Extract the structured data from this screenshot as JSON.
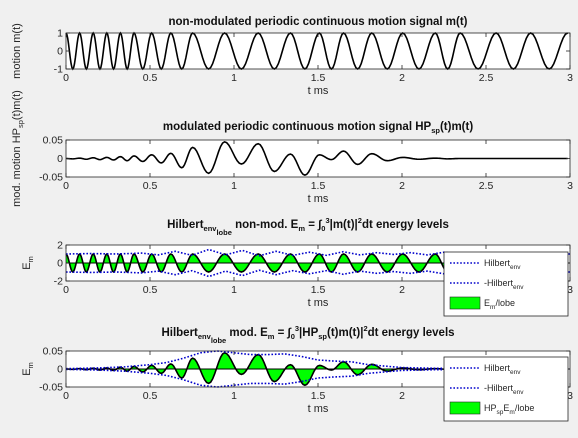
{
  "chart_data": [
    {
      "type": "line",
      "title": "non-modulated periodic continuous motion signal m(t)",
      "xlabel": "t ms",
      "ylabel": "motion m(t)",
      "xlim": [
        0,
        3
      ],
      "ylim": [
        -1,
        1
      ],
      "xticks": [
        "0",
        "0.5",
        "1",
        "1.5",
        "2",
        "2.5",
        "3"
      ],
      "yticks": [
        "-1",
        "0",
        "1"
      ],
      "grid": false,
      "series": [
        {
          "color": "#000000",
          "x": [
            0,
            0.0405,
            0.081,
            0.121,
            0.162,
            0.202,
            0.243,
            0.283,
            0.324,
            0.364,
            0.405,
            0.457,
            0.51,
            0.567,
            0.624,
            0.689,
            0.754,
            0.849,
            0.944,
            1.044,
            1.144,
            1.24,
            1.336,
            1.422,
            1.508,
            1.58,
            1.652,
            1.736,
            1.82,
            1.912,
            2.004,
            2.101,
            2.198,
            2.272,
            2.346,
            2.453,
            2.56,
            2.663,
            2.766,
            2.876,
            2.986
          ],
          "y": [
            1,
            -1,
            1,
            -1,
            1,
            -1,
            1,
            -1,
            1,
            -1,
            1,
            -1,
            1,
            -1,
            1,
            -1,
            1,
            -1,
            1,
            -1,
            1,
            -1,
            1,
            -1,
            1,
            -1,
            1,
            -1,
            1,
            -1,
            1,
            -1,
            1,
            -1,
            1,
            -1,
            1,
            -1,
            1,
            -1,
            1
          ]
        }
      ]
    },
    {
      "type": "line",
      "title": "modulated periodic continuous motion signal HP",
      "title_sub": "sp",
      "title_tail": "(t)m(t)",
      "xlabel": "t ms",
      "ylabel": "mod. motion HPsp(t)m(t)",
      "xlim": [
        0,
        3
      ],
      "ylim": [
        -0.05,
        0.05
      ],
      "xticks": [
        "0",
        "0.5",
        "1",
        "1.5",
        "2",
        "2.5",
        "3"
      ],
      "yticks": [
        "-0.05",
        "0",
        "0.05"
      ],
      "grid": false,
      "series": [
        {
          "color": "#000000",
          "x": [
            0,
            0.0405,
            0.081,
            0.121,
            0.162,
            0.202,
            0.243,
            0.283,
            0.324,
            0.364,
            0.405,
            0.457,
            0.51,
            0.567,
            0.624,
            0.689,
            0.754,
            0.849,
            0.944,
            1.044,
            1.144,
            1.24,
            1.336,
            1.422,
            1.508,
            1.58,
            1.652,
            1.736,
            1.82,
            1.912,
            2.004,
            2.101,
            2.198,
            2.272,
            2.346,
            2.453,
            2.56,
            2.663,
            2.766,
            2.876,
            2.986
          ],
          "y": [
            0,
            -0.001,
            0.001,
            -0.002,
            0.002,
            -0.003,
            0.003,
            -0.004,
            0.005,
            -0.006,
            0.007,
            -0.008,
            0.01,
            -0.012,
            0.014,
            -0.025,
            0.03,
            -0.04,
            0.045,
            -0.015,
            0.04,
            -0.035,
            0.012,
            -0.045,
            0.01,
            -0.003,
            0.02,
            -0.016,
            0.013,
            -0.006,
            0.003,
            -0.002,
            0.001,
            -0.001,
            0,
            0,
            0,
            0,
            0,
            0,
            0
          ]
        }
      ]
    },
    {
      "type": "area",
      "title": "Hilbert",
      "title_sub": "env",
      "title_sub2": "lobe",
      "title_tail": " non-mod. E",
      "title_sub3": "m",
      "title_tail2": " = ∫",
      "title_sub4": "0",
      "title_sup": "3",
      "title_tail3": "|m(t)|",
      "title_sup2": "2",
      "title_tail4": "dt energy levels",
      "xlabel": "t ms",
      "ylabel": "E",
      "ylabel_sub": "m",
      "xlim": [
        0,
        3
      ],
      "ylim": [
        -2,
        2
      ],
      "xticks": [
        "0",
        "0.5",
        "1",
        "1.5",
        "2",
        "2.5",
        "3"
      ],
      "yticks": [
        "-2",
        "0",
        "2"
      ],
      "grid": false,
      "legend": {
        "placement": "bottom-right",
        "entries": [
          {
            "label": "Hilbert",
            "sub": "env",
            "color": "#0000cc",
            "style": "dotted"
          },
          {
            "label": "-Hilbert",
            "sub": "env",
            "color": "#0000cc",
            "style": "dotted"
          },
          {
            "label": "E",
            "sub": "m",
            "tail": "/lobe",
            "color": "#00ff00",
            "style": "patch"
          }
        ]
      },
      "series": [
        {
          "name": "signal",
          "color": "#000000",
          "x": [
            0,
            0.0405,
            0.081,
            0.121,
            0.162,
            0.202,
            0.243,
            0.283,
            0.324,
            0.364,
            0.405,
            0.457,
            0.51,
            0.567,
            0.624,
            0.689,
            0.754,
            0.849,
            0.944,
            1.044,
            1.144,
            1.24,
            1.336,
            1.422,
            1.508,
            1.58,
            1.652,
            1.736,
            1.82,
            1.912,
            2.004,
            2.101,
            2.198,
            2.272,
            2.346,
            2.453,
            2.56,
            2.663,
            2.766,
            2.876,
            2.986
          ],
          "y": [
            1,
            -1,
            1,
            -1,
            1,
            -1,
            1,
            -1,
            1,
            -1,
            1,
            -1,
            1,
            -1,
            1,
            -1,
            1,
            -1,
            1,
            -1,
            1,
            -1,
            1,
            -1,
            1,
            -1,
            1,
            -1,
            1,
            -1,
            1,
            -1,
            1,
            -1,
            1,
            -1,
            1,
            -1,
            1,
            -1,
            1
          ]
        },
        {
          "name": "Hilbert env",
          "color": "#0000cc",
          "x": [
            0,
            0.15,
            0.3,
            0.45,
            0.55,
            0.65,
            0.75,
            0.85,
            0.95,
            1.05,
            1.15,
            1.25,
            1.35,
            1.45,
            1.55,
            1.65,
            1.75,
            1.85,
            1.95,
            2.05,
            2.15,
            2.25,
            2.35,
            2.5,
            2.65,
            2.8,
            2.95,
            3
          ],
          "y": [
            1.0,
            1.05,
            1.0,
            1.1,
            0.9,
            1.3,
            0.85,
            1.5,
            0.9,
            1.4,
            0.8,
            1.3,
            0.85,
            1.2,
            0.85,
            1.25,
            0.9,
            1.15,
            0.95,
            1.15,
            0.9,
            1.2,
            0.95,
            1.1,
            0.95,
            1.05,
            1.0,
            1.0
          ]
        }
      ]
    },
    {
      "type": "area",
      "title": "Hilbert",
      "title_sub": "env",
      "title_sub2": "lobe",
      "title_tail": " mod. E",
      "title_sub3": "m",
      "title_tail2": " = ∫",
      "title_sub4": "0",
      "title_sup": "3",
      "title_tail3": "|HP",
      "title_sub5": "sp",
      "title_tail5": "(t)m(t)|",
      "title_sup2": "2",
      "title_tail4": "dt energy levels",
      "xlabel": "t ms",
      "ylabel": "E",
      "ylabel_sub": "m",
      "xlim": [
        0,
        3
      ],
      "ylim": [
        -0.05,
        0.05
      ],
      "xticks": [
        "0",
        "0.5",
        "1",
        "1.5",
        "2",
        "2.5",
        "3"
      ],
      "yticks": [
        "-0.05",
        "0",
        "0.05"
      ],
      "grid": false,
      "legend": {
        "placement": "bottom-right",
        "entries": [
          {
            "label": "Hilbert",
            "sub": "env",
            "color": "#0000cc",
            "style": "dotted"
          },
          {
            "label": "-Hilbert",
            "sub": "env",
            "color": "#0000cc",
            "style": "dotted"
          },
          {
            "label": "HP",
            "sub": "sp",
            "tail": "E",
            "sub2": "m",
            "tail2": "/lobe",
            "color": "#00ff00",
            "style": "patch"
          }
        ]
      },
      "series": [
        {
          "name": "signal",
          "color": "#000000",
          "x": [
            0,
            0.0405,
            0.081,
            0.121,
            0.162,
            0.202,
            0.243,
            0.283,
            0.324,
            0.364,
            0.405,
            0.457,
            0.51,
            0.567,
            0.624,
            0.689,
            0.754,
            0.849,
            0.944,
            1.044,
            1.144,
            1.24,
            1.336,
            1.422,
            1.508,
            1.58,
            1.652,
            1.736,
            1.82,
            1.912,
            2.004,
            2.101,
            2.198,
            2.272,
            2.346,
            2.453,
            2.56,
            2.663,
            2.766,
            2.876,
            2.986
          ],
          "y": [
            0,
            -0.001,
            0.001,
            -0.002,
            0.002,
            -0.003,
            0.003,
            -0.004,
            0.005,
            -0.006,
            0.007,
            -0.008,
            0.01,
            -0.012,
            0.014,
            -0.025,
            0.03,
            -0.04,
            0.045,
            -0.015,
            0.04,
            -0.035,
            0.012,
            -0.045,
            0.01,
            -0.003,
            0.02,
            -0.016,
            0.013,
            -0.006,
            0.003,
            -0.002,
            0.001,
            -0.001,
            0,
            0,
            0,
            0,
            0,
            0,
            0
          ]
        },
        {
          "name": "Hilbert env",
          "color": "#0000cc",
          "x": [
            0,
            0.2,
            0.35,
            0.5,
            0.6,
            0.7,
            0.8,
            0.9,
            1.0,
            1.1,
            1.2,
            1.3,
            1.4,
            1.5,
            1.6,
            1.7,
            1.8,
            1.9,
            2.0,
            2.2,
            2.5,
            2.8,
            3
          ],
          "y": [
            0.001,
            0.003,
            0.006,
            0.012,
            0.018,
            0.03,
            0.045,
            0.05,
            0.045,
            0.04,
            0.04,
            0.042,
            0.035,
            0.025,
            0.022,
            0.02,
            0.012,
            0.008,
            0.004,
            0.002,
            0.001,
            0.0,
            0.0
          ]
        }
      ]
    }
  ]
}
